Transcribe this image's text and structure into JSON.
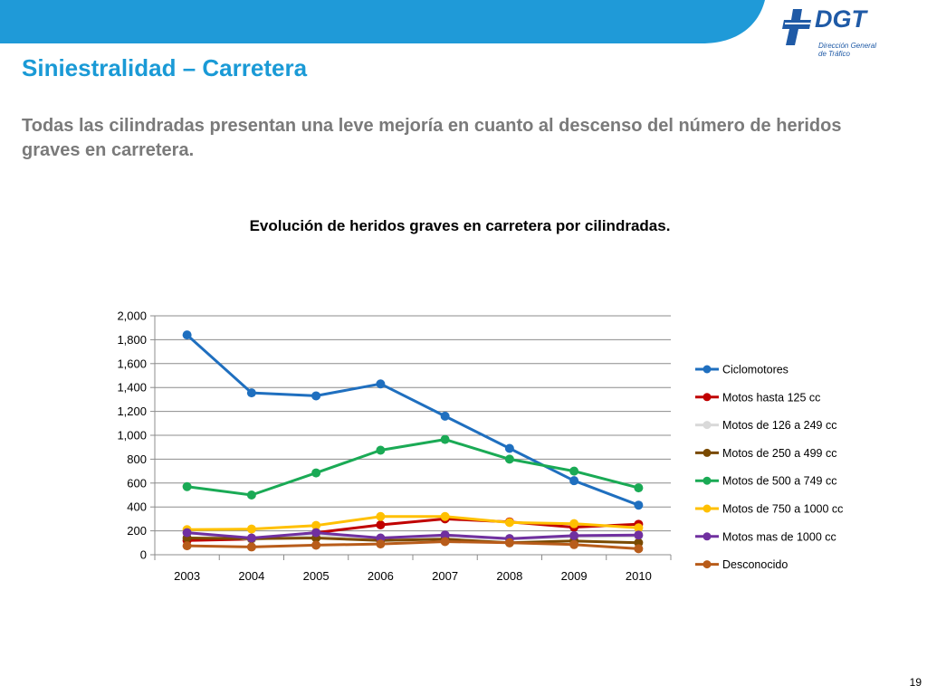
{
  "header": {
    "logo_text": "DGT",
    "logo_subtitle_line1": "Dirección General",
    "logo_subtitle_line2": "de Tráfico",
    "banner_color": "#1f9ad8",
    "logo_color": "#1f5aa6"
  },
  "slide": {
    "title": "Siniestralidad – Carretera",
    "subtitle": "Todas las cilindradas presentan una leve mejoría en cuanto al descenso del número de heridos graves en carretera.",
    "chart_title": "Evolución de heridos graves en carretera por cilindradas.",
    "page_number": "19"
  },
  "chart_data": {
    "type": "line",
    "title": "Evolución de heridos graves en carretera por cilindradas.",
    "xlabel": "",
    "ylabel": "",
    "categories": [
      "2003",
      "2004",
      "2005",
      "2006",
      "2007",
      "2008",
      "2009",
      "2010"
    ],
    "ylim": [
      0,
      2000
    ],
    "yticks": [
      0,
      200,
      400,
      600,
      800,
      1000,
      1200,
      1400,
      1600,
      1800,
      2000
    ],
    "ytick_labels": [
      "0",
      "200",
      "400",
      "600",
      "800",
      "1,000",
      "1,200",
      "1,400",
      "1,600",
      "1,800",
      "2,000"
    ],
    "grid": "horizontal",
    "legend_position": "right",
    "series": [
      {
        "name": "Ciclomotores",
        "color": "#1f6fbf",
        "values": [
          1840,
          1355,
          1330,
          1430,
          1160,
          890,
          620,
          415
        ]
      },
      {
        "name": "Motos hasta 125 cc",
        "color": "#c00000",
        "values": [
          120,
          130,
          185,
          250,
          300,
          275,
          230,
          255
        ]
      },
      {
        "name": "Motos de 126 a 249 cc",
        "color": "#d9d9d9",
        "values": [
          185,
          125,
          170,
          135,
          155,
          130,
          150,
          155
        ]
      },
      {
        "name": "Motos de 250 a 499 cc",
        "color": "#7a4a00",
        "values": [
          140,
          135,
          140,
          120,
          130,
          100,
          115,
          100
        ]
      },
      {
        "name": "Motos de 500 a 749 cc",
        "color": "#1aaa55",
        "values": [
          570,
          500,
          685,
          875,
          965,
          800,
          700,
          560
        ]
      },
      {
        "name": "Motos de 750 a 1000 cc",
        "color": "#ffc000",
        "values": [
          210,
          215,
          245,
          320,
          320,
          270,
          260,
          225
        ]
      },
      {
        "name": "Motos mas de 1000 cc",
        "color": "#7030a0",
        "values": [
          185,
          140,
          185,
          140,
          165,
          135,
          160,
          165
        ]
      },
      {
        "name": "Desconocido",
        "color": "#b85c1a",
        "values": [
          75,
          65,
          80,
          90,
          110,
          100,
          85,
          50
        ]
      }
    ]
  }
}
